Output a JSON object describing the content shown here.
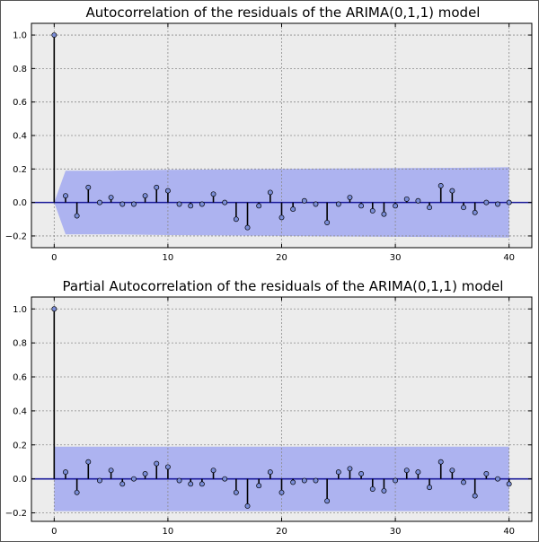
{
  "chart_data": [
    {
      "type": "stem",
      "title": "Autocorrelation of the residuals of the ARIMA(0,1,1) model",
      "xlabel": "",
      "ylabel": "",
      "xlim": [
        -2,
        42
      ],
      "ylim": [
        -0.27,
        1.07
      ],
      "xticks": [
        0,
        10,
        20,
        30,
        40
      ],
      "xtick_labels": [
        "0",
        "10",
        "20",
        "30",
        "40"
      ],
      "yticks": [
        -0.2,
        0.0,
        0.2,
        0.4,
        0.6,
        0.8,
        1.0
      ],
      "ytick_labels": [
        "−0.2",
        "0.0",
        "0.2",
        "0.4",
        "0.6",
        "0.8",
        "1.0"
      ],
      "grid": true,
      "background_color": "#ececec",
      "stem_color": "#000000",
      "marker_color": "#7b8ed8",
      "zero_line_color": "#1a1a9a",
      "confidence_band_color": "#aab0f0",
      "x": [
        0,
        1,
        2,
        3,
        4,
        5,
        6,
        7,
        8,
        9,
        10,
        11,
        12,
        13,
        14,
        15,
        16,
        17,
        18,
        19,
        20,
        21,
        22,
        23,
        24,
        25,
        26,
        27,
        28,
        29,
        30,
        31,
        32,
        33,
        34,
        35,
        36,
        37,
        38,
        39,
        40
      ],
      "values": [
        1.0,
        0.04,
        -0.08,
        0.09,
        0.0,
        0.03,
        -0.01,
        -0.01,
        0.04,
        0.09,
        0.07,
        -0.01,
        -0.02,
        -0.01,
        0.05,
        0.0,
        -0.1,
        -0.15,
        -0.02,
        0.06,
        -0.09,
        -0.04,
        0.01,
        -0.01,
        -0.12,
        -0.01,
        0.03,
        -0.02,
        -0.05,
        -0.07,
        -0.02,
        0.02,
        0.01,
        -0.03,
        0.1,
        0.07,
        -0.03,
        -0.06,
        0.0,
        -0.01,
        0.0
      ],
      "confidence_band": {
        "x": [
          0,
          1,
          2,
          3,
          5,
          10,
          15,
          20,
          25,
          30,
          35,
          40
        ],
        "upper": [
          0.0,
          0.19,
          0.19,
          0.19,
          0.19,
          0.195,
          0.197,
          0.2,
          0.203,
          0.205,
          0.207,
          0.21
        ],
        "lower": [
          0.0,
          -0.19,
          -0.19,
          -0.19,
          -0.19,
          -0.195,
          -0.197,
          -0.2,
          -0.203,
          -0.205,
          -0.207,
          -0.21
        ]
      }
    },
    {
      "type": "stem",
      "title": "Partial Autocorrelation of the residuals of the ARIMA(0,1,1) model",
      "xlabel": "",
      "ylabel": "",
      "xlim": [
        -2,
        42
      ],
      "ylim": [
        -0.25,
        1.07
      ],
      "xticks": [
        0,
        10,
        20,
        30,
        40
      ],
      "xtick_labels": [
        "0",
        "10",
        "20",
        "30",
        "40"
      ],
      "yticks": [
        -0.2,
        0.0,
        0.2,
        0.4,
        0.6,
        0.8,
        1.0
      ],
      "ytick_labels": [
        "−0.2",
        "0.0",
        "0.2",
        "0.4",
        "0.6",
        "0.8",
        "1.0"
      ],
      "grid": true,
      "background_color": "#ececec",
      "stem_color": "#000000",
      "marker_color": "#7b8ed8",
      "zero_line_color": "#1a1a9a",
      "confidence_band_color": "#aab0f0",
      "x": [
        0,
        1,
        2,
        3,
        4,
        5,
        6,
        7,
        8,
        9,
        10,
        11,
        12,
        13,
        14,
        15,
        16,
        17,
        18,
        19,
        20,
        21,
        22,
        23,
        24,
        25,
        26,
        27,
        28,
        29,
        30,
        31,
        32,
        33,
        34,
        35,
        36,
        37,
        38,
        39,
        40
      ],
      "values": [
        1.0,
        0.04,
        -0.08,
        0.1,
        -0.01,
        0.05,
        -0.03,
        0.0,
        0.03,
        0.09,
        0.07,
        -0.01,
        -0.03,
        -0.03,
        0.05,
        0.0,
        -0.08,
        -0.16,
        -0.04,
        0.04,
        -0.08,
        -0.02,
        -0.01,
        -0.01,
        -0.13,
        0.04,
        0.06,
        0.03,
        -0.06,
        -0.07,
        -0.01,
        0.05,
        0.04,
        -0.05,
        0.1,
        0.05,
        -0.02,
        -0.1,
        0.03,
        0.0,
        -0.03
      ],
      "confidence_band": {
        "x": [
          0,
          1,
          40
        ],
        "upper": [
          0.19,
          0.19,
          0.19
        ],
        "lower": [
          -0.19,
          -0.19,
          -0.19
        ]
      }
    }
  ]
}
